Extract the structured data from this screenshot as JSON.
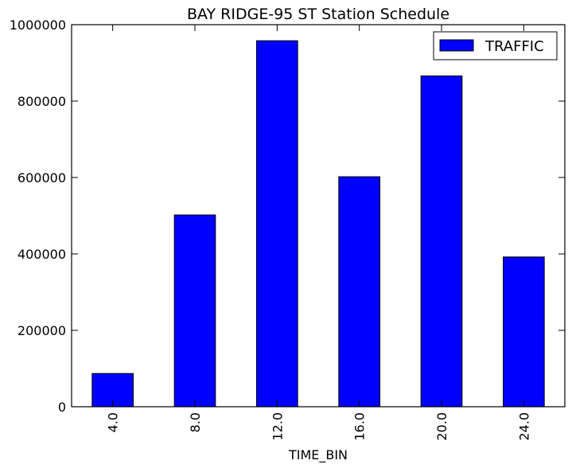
{
  "chart_data": {
    "type": "bar",
    "title": "BAY RIDGE-95 ST Station Schedule",
    "xlabel": "TIME_BIN",
    "ylabel": "",
    "categories": [
      "4.0",
      "8.0",
      "12.0",
      "16.0",
      "20.0",
      "24.0"
    ],
    "series": [
      {
        "name": "TRAFFIC",
        "values": [
          87000,
          502000,
          958000,
          602000,
          866000,
          392000
        ],
        "color": "#0000ff"
      }
    ],
    "ylim": [
      0,
      1000000
    ],
    "yticks": [
      0,
      200000,
      400000,
      600000,
      800000,
      1000000
    ],
    "ytick_labels": [
      "0",
      "200000",
      "400000",
      "600000",
      "800000",
      "1000000"
    ],
    "grid": false,
    "legend_position": "top-right",
    "x_tick_rotation": "vertical"
  }
}
